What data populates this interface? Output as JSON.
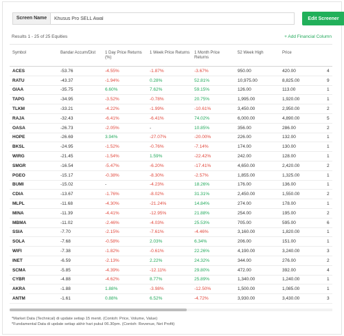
{
  "screen": {
    "label": "Screen Name",
    "value": "Khusus Pro SELL Awal",
    "edit_button": "Edit Screener"
  },
  "results_text": "Results 1 - 25 of 25 Equities",
  "add_column": "+ Add Financial Column",
  "columns": [
    "Symbol",
    "Bandar Accum/Dist",
    "1 Day Price Returns (%)",
    "1 Week Price Returns",
    "1 Month Price Returns",
    "52 Week High",
    "Price",
    ""
  ],
  "rows": [
    {
      "sym": "ACES",
      "bandar": "-53.76",
      "d1": "-4.55%",
      "w1": "-1.87%",
      "m1": "-3.67%",
      "hi52": "950.00",
      "price": "420.00",
      "extra": "4"
    },
    {
      "sym": "RATU",
      "bandar": "-43.37",
      "d1": "-1.94%",
      "w1": "0.28%",
      "m1": "52.81%",
      "hi52": "10,975.00",
      "price": "8,825.00",
      "extra": "9"
    },
    {
      "sym": "GIAA",
      "bandar": "-35.75",
      "d1": "6.60%",
      "w1": "7.62%",
      "m1": "59.15%",
      "hi52": "126.00",
      "price": "113.00",
      "extra": "1"
    },
    {
      "sym": "TAPG",
      "bandar": "-34.95",
      "d1": "-3.52%",
      "w1": "-0.78%",
      "m1": "20.75%",
      "hi52": "1,995.00",
      "price": "1,920.00",
      "extra": "1"
    },
    {
      "sym": "TLKM",
      "bandar": "-33.21",
      "d1": "-4.22%",
      "w1": "-1.99%",
      "m1": "-10.61%",
      "hi52": "3,450.00",
      "price": "2,950.00",
      "extra": "2"
    },
    {
      "sym": "RAJA",
      "bandar": "-32.43",
      "d1": "-6.41%",
      "w1": "-6.41%",
      "m1": "74.02%",
      "hi52": "6,000.00",
      "price": "4,890.00",
      "extra": "5"
    },
    {
      "sym": "OASA",
      "bandar": "-26.73",
      "d1": "-2.05%",
      "w1": "-",
      "m1": "10.85%",
      "hi52": "356.00",
      "price": "286.00",
      "extra": "2"
    },
    {
      "sym": "HOPE",
      "bandar": "-26.69",
      "d1": "3.94%",
      "w1": "-27.07%",
      "m1": "-20.00%",
      "hi52": "226.00",
      "price": "132.00",
      "extra": "1"
    },
    {
      "sym": "BKSL",
      "bandar": "-24.95",
      "d1": "-1.52%",
      "w1": "-0.76%",
      "m1": "-7.14%",
      "hi52": "174.00",
      "price": "130.00",
      "extra": "1"
    },
    {
      "sym": "WIRG",
      "bandar": "-21.45",
      "d1": "-1.54%",
      "w1": "1.59%",
      "m1": "-22.42%",
      "hi52": "242.00",
      "price": "128.00",
      "extra": "1"
    },
    {
      "sym": "SMGR",
      "bandar": "-16.54",
      "d1": "-5.47%",
      "w1": "-6.20%",
      "m1": "-17.41%",
      "hi52": "4,650.00",
      "price": "2,420.00",
      "extra": "2"
    },
    {
      "sym": "PGEO",
      "bandar": "-15.17",
      "d1": "-0.38%",
      "w1": "-8.30%",
      "m1": "-2.57%",
      "hi52": "1,855.00",
      "price": "1,325.00",
      "extra": "1"
    },
    {
      "sym": "BUMI",
      "bandar": "-15.02",
      "d1": "-",
      "w1": "-4.23%",
      "m1": "18.26%",
      "hi52": "176.00",
      "price": "136.00",
      "extra": "1"
    },
    {
      "sym": "CDIA",
      "bandar": "-13.67",
      "d1": "-1.76%",
      "w1": "-8.02%",
      "m1": "31.31%",
      "hi52": "2,450.00",
      "price": "1,550.00",
      "extra": "2"
    },
    {
      "sym": "MLPL",
      "bandar": "-11.68",
      "d1": "-4.30%",
      "w1": "-21.24%",
      "m1": "14.84%",
      "hi52": "274.00",
      "price": "178.00",
      "extra": "1"
    },
    {
      "sym": "MINA",
      "bandar": "-11.39",
      "d1": "-4.41%",
      "w1": "-12.95%",
      "m1": "21.88%",
      "hi52": "254.00",
      "price": "195.00",
      "extra": "2"
    },
    {
      "sym": "MBMA",
      "bandar": "-11.02",
      "d1": "-2.46%",
      "w1": "-4.03%",
      "m1": "25.53%",
      "hi52": "705.00",
      "price": "595.00",
      "extra": "6"
    },
    {
      "sym": "SSIA",
      "bandar": "-7.70",
      "d1": "-2.15%",
      "w1": "-7.61%",
      "m1": "-4.46%",
      "hi52": "3,160.00",
      "price": "1,820.00",
      "extra": "1"
    },
    {
      "sym": "SOLA",
      "bandar": "-7.68",
      "d1": "-0.58%",
      "w1": "2.03%",
      "m1": "6.34%",
      "hi52": "206.00",
      "price": "151.00",
      "extra": "1"
    },
    {
      "sym": "WIFI",
      "bandar": "-7.38",
      "d1": "-1.82%",
      "w1": "-0.61%",
      "m1": "22.26%",
      "hi52": "4,190.00",
      "price": "3,240.00",
      "extra": "3"
    },
    {
      "sym": "INET",
      "bandar": "-6.59",
      "d1": "-2.13%",
      "w1": "2.22%",
      "m1": "24.32%",
      "hi52": "344.00",
      "price": "276.00",
      "extra": "2"
    },
    {
      "sym": "SCMA",
      "bandar": "-5.85",
      "d1": "-4.39%",
      "w1": "-12.11%",
      "m1": "29.80%",
      "hi52": "472.00",
      "price": "392.00",
      "extra": "4"
    },
    {
      "sym": "CYBR",
      "bandar": "-4.88",
      "d1": "-4.62%",
      "w1": "8.77%",
      "m1": "25.89%",
      "hi52": "1,340.00",
      "price": "1,240.00",
      "extra": "1"
    },
    {
      "sym": "AKRA",
      "bandar": "-1.88",
      "d1": "1.88%",
      "w1": "-3.98%",
      "m1": "-12.50%",
      "hi52": "1,500.00",
      "price": "1,085.00",
      "extra": "1"
    },
    {
      "sym": "ANTM",
      "bandar": "-1.61",
      "d1": "0.88%",
      "w1": "6.52%",
      "m1": "-4.72%",
      "hi52": "3,930.00",
      "price": "3,430.00",
      "extra": "3"
    }
  ],
  "notes": [
    "*Market Data (Technical) di update setiap 15 menit. (Contoh: Price, Volume, Value)",
    "*Fundamental Data di update setiap akhir hari pukul 06.30pm. (Contoh: Revenue, Net Profit)"
  ],
  "colors": {
    "accent_green": "#21b05a",
    "positive": "#21a85a",
    "negative": "#e0463a"
  }
}
